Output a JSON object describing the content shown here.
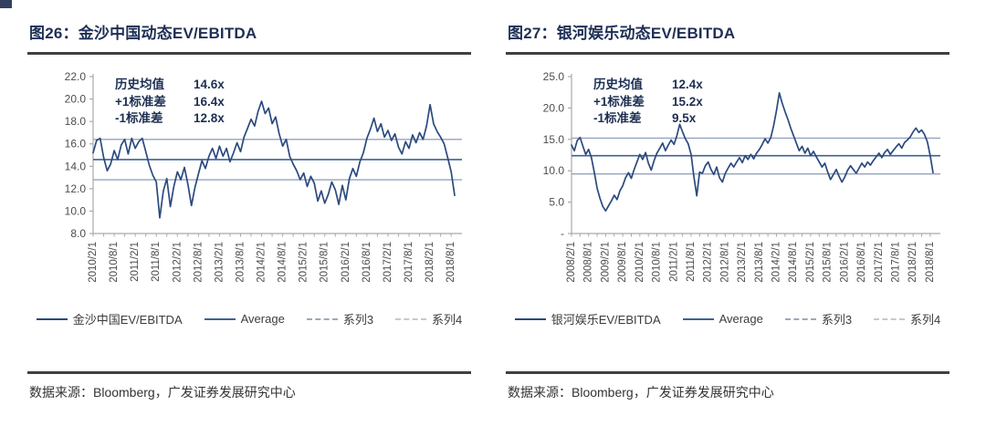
{
  "panels": [
    {
      "figure_label": "图26：金沙中国动态EV/EBITDA",
      "stats": [
        {
          "label": "历史均值",
          "value": "14.6x"
        },
        {
          "label": "+1标准差",
          "value": "16.4x"
        },
        {
          "label": "-1标准差",
          "value": "12.8x"
        }
      ],
      "legend": [
        {
          "label": "金沙中国EV/EBITDA",
          "style": "solid",
          "color": "#2b4a7e"
        },
        {
          "label": "Average",
          "style": "solid",
          "color": "#3e6293"
        },
        {
          "label": "系列3",
          "style": "dashed",
          "color": "#a0a9b8"
        },
        {
          "label": "系列4",
          "style": "dashed",
          "color": "#c4c9d4"
        }
      ],
      "source_note": "数据来源：Bloomberg，广发证券发展研究中心"
    },
    {
      "figure_label": "图27：银河娱乐动态EV/EBITDA",
      "stats": [
        {
          "label": "历史均值",
          "value": "12.4x"
        },
        {
          "label": "+1标准差",
          "value": "15.2x"
        },
        {
          "label": "-1标准差",
          "value": "9.5x"
        }
      ],
      "legend": [
        {
          "label": "银河娱乐EV/EBITDA",
          "style": "solid",
          "color": "#2b4a7e"
        },
        {
          "label": "Average",
          "style": "solid",
          "color": "#3e6293"
        },
        {
          "label": "系列3",
          "style": "dashed",
          "color": "#a0a9b8"
        },
        {
          "label": "系列4",
          "style": "dashed",
          "color": "#c4c9d4"
        }
      ],
      "source_note": "数据来源：Bloomberg，广发证券发展研究中心"
    }
  ],
  "chart_data": [
    {
      "type": "line",
      "title": "金沙中国动态EV/EBITDA",
      "series_name": "金沙中国EV/EBITDA",
      "mean": 14.6,
      "plus1sd": 16.4,
      "minus1sd": 12.8,
      "ylim": [
        8,
        22
      ],
      "y_ticks": [
        {
          "value": 22,
          "label": "22.0"
        },
        {
          "value": 20,
          "label": "20.0"
        },
        {
          "value": 18,
          "label": "18.0"
        },
        {
          "value": 16,
          "label": "16.0"
        },
        {
          "value": 14,
          "label": "14.0"
        },
        {
          "value": 12,
          "label": "12.0"
        },
        {
          "value": 10,
          "label": "10.0"
        },
        {
          "value": 8,
          "label": "8.0"
        }
      ],
      "x_start": "2010/2/1",
      "x_freq": "monthly",
      "x_tick_step": 6,
      "x_tick_labels": [
        "2010/2/1",
        "2010/8/1",
        "2011/2/1",
        "2011/8/1",
        "2012/2/1",
        "2012/8/1",
        "2013/2/1",
        "2013/8/1",
        "2014/2/1",
        "2014/8/1",
        "2015/2/1",
        "2015/8/1",
        "2016/2/1",
        "2016/8/1",
        "2017/2/1",
        "2017/8/1",
        "2018/2/1",
        "2018/8/1"
      ],
      "values": [
        15.2,
        16.3,
        16.5,
        14.8,
        13.6,
        14.2,
        15.4,
        14.6,
        15.9,
        16.4,
        15.1,
        16.5,
        15.6,
        16.2,
        16.5,
        15.3,
        14.1,
        13.2,
        12.6,
        9.4,
        11.8,
        12.9,
        10.4,
        12.2,
        13.5,
        12.8,
        13.9,
        12.4,
        10.5,
        12.1,
        13.3,
        14.5,
        13.8,
        14.9,
        15.6,
        14.7,
        15.8,
        14.9,
        15.6,
        14.4,
        15.2,
        16.1,
        15.3,
        16.6,
        17.4,
        18.2,
        17.6,
        18.9,
        19.8,
        18.7,
        19.2,
        17.8,
        18.4,
        16.9,
        15.8,
        16.4,
        14.9,
        14.2,
        13.6,
        12.8,
        13.4,
        12.2,
        13.1,
        12.5,
        10.9,
        11.8,
        10.7,
        11.5,
        12.6,
        11.9,
        10.6,
        12.3,
        11.0,
        12.9,
        13.8,
        13.1,
        14.4,
        15.2,
        16.5,
        17.3,
        18.3,
        17.1,
        17.8,
        16.6,
        17.2,
        16.3,
        16.9,
        15.7,
        15.1,
        16.2,
        15.6,
        16.8,
        16.1,
        17.0,
        16.4,
        17.6,
        19.5,
        17.8,
        17.1,
        16.6,
        16.0,
        14.8,
        13.5,
        11.4
      ],
      "colors": {
        "series": "#2b4a7e",
        "average": "#3e6293",
        "band": "#94a3bd",
        "axis": "#a9a9a9",
        "tick_text": "#4d4d4d"
      }
    },
    {
      "type": "line",
      "title": "银河娱乐动态EV/EBITDA",
      "series_name": "银河娱乐EV/EBITDA",
      "mean": 12.4,
      "plus1sd": 15.2,
      "minus1sd": 9.5,
      "ylim": [
        0,
        25
      ],
      "y_ticks": [
        {
          "value": 25,
          "label": "25.0"
        },
        {
          "value": 20,
          "label": "20.0"
        },
        {
          "value": 15,
          "label": "15.0"
        },
        {
          "value": 10,
          "label": "10.0"
        },
        {
          "value": 5,
          "label": "5.0"
        },
        {
          "value": 0,
          "label": "-"
        }
      ],
      "x_start": "2008/2/1",
      "x_freq": "monthly",
      "x_tick_step": 6,
      "x_tick_labels": [
        "2008/2/1",
        "2008/8/1",
        "2009/2/1",
        "2009/8/1",
        "2010/2/1",
        "2010/8/1",
        "2011/2/1",
        "2011/8/1",
        "2012/2/1",
        "2012/8/1",
        "2013/2/1",
        "2013/8/1",
        "2014/2/1",
        "2014/8/1",
        "2015/2/1",
        "2015/8/1",
        "2016/2/1",
        "2016/8/1",
        "2017/2/1",
        "2017/8/1",
        "2018/2/1",
        "2018/8/1"
      ],
      "values": [
        14.1,
        13.2,
        14.8,
        15.3,
        13.9,
        12.6,
        13.4,
        12.1,
        9.8,
        7.2,
        5.6,
        4.3,
        3.6,
        4.4,
        5.2,
        6.1,
        5.4,
        6.8,
        7.6,
        8.9,
        9.7,
        8.8,
        10.2,
        11.4,
        12.6,
        11.8,
        12.9,
        11.2,
        10.1,
        11.6,
        12.8,
        13.6,
        14.4,
        13.2,
        14.1,
        14.9,
        14.2,
        15.6,
        17.4,
        16.2,
        15.1,
        14.3,
        12.6,
        9.0,
        6.0,
        9.8,
        9.6,
        10.8,
        11.4,
        10.2,
        9.4,
        10.6,
        8.9,
        8.2,
        9.6,
        10.4,
        11.2,
        10.6,
        11.4,
        12.1,
        11.3,
        12.4,
        11.8,
        12.6,
        11.9,
        12.8,
        13.4,
        14.2,
        15.1,
        14.4,
        15.3,
        17.2,
        19.6,
        22.4,
        20.8,
        19.4,
        18.2,
        16.8,
        15.6,
        14.4,
        13.2,
        13.9,
        12.8,
        13.6,
        12.4,
        13.1,
        12.2,
        11.4,
        10.6,
        11.2,
        9.8,
        8.6,
        9.4,
        10.2,
        9.1,
        8.2,
        9.0,
        10.1,
        10.8,
        10.2,
        9.6,
        10.4,
        11.2,
        10.6,
        11.4,
        10.9,
        11.6,
        12.2,
        12.8,
        12.1,
        12.9,
        13.4,
        12.6,
        13.2,
        13.8,
        14.3,
        13.6,
        14.5,
        14.9,
        15.4,
        16.2,
        16.8,
        16.1,
        16.5,
        15.8,
        14.6,
        12.4,
        9.7
      ],
      "colors": {
        "series": "#2b4a7e",
        "average": "#3e6293",
        "band": "#94a3bd",
        "axis": "#a9a9a9",
        "tick_text": "#4d4d4d"
      }
    }
  ]
}
